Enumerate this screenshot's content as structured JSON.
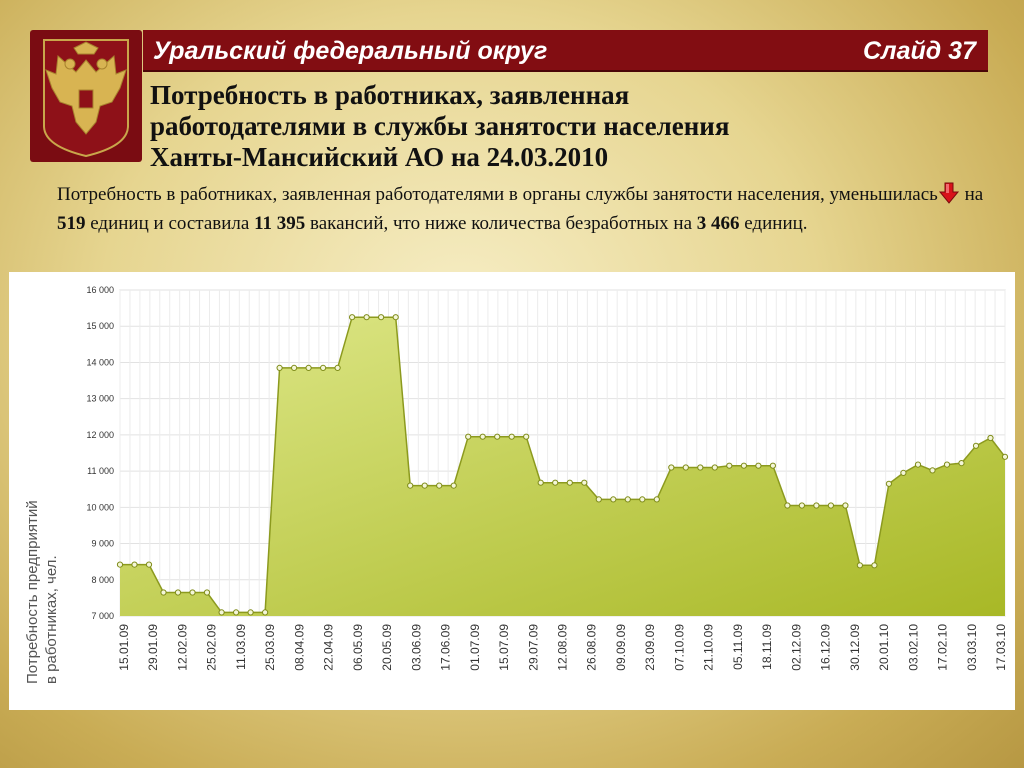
{
  "header": {
    "region": "Уральский федеральный округ",
    "slide": "Слайд 37"
  },
  "emblem": {
    "icon": "double-headed-eagle-icon"
  },
  "heading": {
    "line1": "Потребность в работниках, заявленная",
    "line2": "работодателями в службы занятости населения",
    "line3": "Ханты-Мансийский АО на 24.03.2010"
  },
  "description": {
    "p1": "Потребность в работниках, заявленная работодателями в органы службы занятости населения, уменьшилась",
    "arrow_icon": "red-down-arrow-icon",
    "p2": " на ",
    "v1": "519",
    "p3": " единиц и составила ",
    "v2": "11 395",
    "p4": " вакансий, что ниже количества безработных на ",
    "v3": "3 466",
    "p5": " единиц."
  },
  "chart_data": {
    "type": "area",
    "ylabel_line1": "Потребность предприятий",
    "ylabel_line2": "в работниках, чел.",
    "ylim": [
      7000,
      16000
    ],
    "yticks": [
      "7 000",
      "8 000",
      "9 000",
      "10 000",
      "11 000",
      "12 000",
      "13 000",
      "14 000",
      "15 000",
      "16 000"
    ],
    "grid": true,
    "fill_color": "#a8b826",
    "line_color": "#8c9a1e",
    "x_labels": [
      "15.01.09",
      "29.01.09",
      "12.02.09",
      "25.02.09",
      "11.03.09",
      "25.03.09",
      "08.04.09",
      "22.04.09",
      "06.05.09",
      "20.05.09",
      "03.06.09",
      "17.06.09",
      "01.07.09",
      "15.07.09",
      "29.07.09",
      "12.08.09",
      "26.08.09",
      "09.09.09",
      "23.09.09",
      "07.10.09",
      "21.10.09",
      "05.11.09",
      "18.11.09",
      "02.12.09",
      "16.12.09",
      "30.12.09",
      "20.01.10",
      "03.02.10",
      "17.02.10",
      "03.03.10",
      "17.03.10"
    ],
    "values": [
      8420,
      8420,
      8420,
      7650,
      7650,
      7650,
      7650,
      7100,
      7100,
      7100,
      7100,
      13850,
      13850,
      13850,
      13850,
      13850,
      15250,
      15250,
      15250,
      15250,
      10600,
      10600,
      10600,
      10600,
      11950,
      11950,
      11950,
      11950,
      11950,
      10680,
      10680,
      10680,
      10680,
      10220,
      10220,
      10220,
      10220,
      10220,
      11100,
      11100,
      11100,
      11100,
      11150,
      11150,
      11150,
      11150,
      10050,
      10050,
      10050,
      10050,
      10050,
      8400,
      8400,
      10650,
      10950,
      11180,
      11020,
      11180,
      11220,
      11700,
      11914,
      11395
    ]
  }
}
